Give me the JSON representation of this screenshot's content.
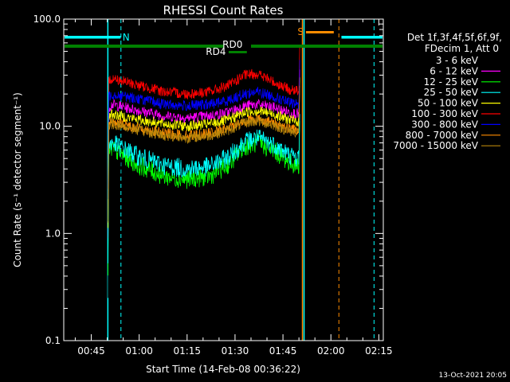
{
  "chart_data": {
    "type": "line",
    "title": "RHESSI Count Rates",
    "xlabel": "Start Time (14-Feb-08 00:36:22)",
    "ylabel": "Count Rate (s⁻¹ detector segment⁻¹)",
    "ylog": true,
    "ylim": [
      0.1,
      100.0
    ],
    "xlim_minutes": [
      36.4,
      136.4
    ],
    "x_ticks": [
      {
        "label": "00:45",
        "minute": 45
      },
      {
        "label": "01:00",
        "minute": 60
      },
      {
        "label": "01:15",
        "minute": 75
      },
      {
        "label": "01:30",
        "minute": 90
      },
      {
        "label": "01:45",
        "minute": 105
      },
      {
        "label": "02:00",
        "minute": 120
      },
      {
        "label": "02:15",
        "minute": 135
      }
    ],
    "y_ticks": [
      {
        "label": "0.1",
        "value": 0.1
      },
      {
        "label": "1.0",
        "value": 1.0
      },
      {
        "label": "10.0",
        "value": 10.0
      },
      {
        "label": "100.0",
        "value": 100.0
      }
    ],
    "legend_header": [
      "Det 1f,3f,4f,5f,6f,9f,",
      "FDecim 1, Att 0"
    ],
    "legend_position": "right",
    "series": [
      {
        "name": "3 - 6 keV",
        "color": "#000000",
        "x": [
          50.5,
          51.5,
          60,
          68,
          75,
          82,
          88,
          93,
          97,
          102,
          107,
          110
        ],
        "values": [
          4.8,
          5.2,
          3.4,
          2.5,
          2.3,
          2.5,
          3.6,
          6.0,
          6.8,
          5.5,
          3.8,
          3.5
        ]
      },
      {
        "name": "6 - 12 keV",
        "color": "#ff00ff",
        "x": [
          50.5,
          51.5,
          60,
          68,
          75,
          82,
          88,
          93,
          97,
          102,
          107,
          110
        ],
        "values": [
          15,
          16,
          14,
          12.5,
          12,
          12.5,
          13.5,
          15.5,
          16,
          15,
          13.5,
          13
        ]
      },
      {
        "name": "12 - 25 keV",
        "color": "#00ff00",
        "x": [
          50.5,
          51.5,
          60,
          68,
          75,
          82,
          88,
          93,
          97,
          102,
          107,
          110
        ],
        "values": [
          5.8,
          6.2,
          4.3,
          3.4,
          3.2,
          3.4,
          4.4,
          6.5,
          7.0,
          6.0,
          4.6,
          4.3
        ]
      },
      {
        "name": "25 - 50 keV",
        "color": "#00ffff",
        "x": [
          50.5,
          51.5,
          60,
          68,
          75,
          82,
          88,
          93,
          97,
          102,
          107,
          110
        ],
        "values": [
          6.6,
          7.0,
          5.2,
          4.3,
          4.0,
          4.2,
          5.2,
          7.2,
          7.8,
          6.8,
          5.4,
          5.0
        ]
      },
      {
        "name": "50 - 100 keV",
        "color": "#ffff00",
        "x": [
          50.5,
          51.5,
          60,
          68,
          75,
          82,
          88,
          93,
          97,
          102,
          107,
          110
        ],
        "values": [
          12.5,
          13,
          11.5,
          10.5,
          10,
          10.5,
          11.5,
          13.5,
          14,
          13,
          11.5,
          11
        ]
      },
      {
        "name": "100 - 300 keV",
        "color": "#ff0000",
        "x": [
          50.5,
          51.5,
          60,
          68,
          75,
          82,
          88,
          93,
          97,
          102,
          107,
          110
        ],
        "values": [
          26,
          28,
          24,
          21,
          20,
          21,
          24,
          30,
          31,
          26,
          22,
          21
        ]
      },
      {
        "name": "300 - 800 keV",
        "color": "#0000ff",
        "x": [
          50.5,
          51.5,
          60,
          68,
          75,
          82,
          88,
          93,
          97,
          102,
          107,
          110
        ],
        "values": [
          19,
          20,
          18,
          16,
          15.5,
          16,
          17.5,
          20,
          21,
          19,
          16.5,
          16
        ]
      },
      {
        "name": "800 - 7000 keV",
        "color": "#ff8c00",
        "x": [
          50.5,
          51.5,
          60,
          68,
          75,
          82,
          88,
          93,
          97,
          102,
          107,
          110
        ],
        "values": [
          10.5,
          11,
          9.6,
          8.6,
          8.2,
          8.6,
          9.6,
          11.3,
          11.8,
          10.8,
          9.5,
          9.2
        ]
      },
      {
        "name": "7000 - 15000 keV",
        "color": "#b8860b",
        "x": [
          50.5,
          51.5,
          60,
          68,
          75,
          82,
          88,
          93,
          97,
          102,
          107,
          110
        ],
        "values": [
          10,
          10.5,
          9.2,
          8.2,
          7.8,
          8.2,
          9.2,
          10.8,
          11.2,
          10.3,
          9.0,
          8.8
        ]
      }
    ],
    "annotations": [
      {
        "text": "N",
        "color": "#00ffff"
      },
      {
        "text": "S",
        "color": "#ff8c00"
      },
      {
        "text": "RD0",
        "color": "#ffffff"
      },
      {
        "text": "RD4",
        "color": "#ffffff"
      }
    ],
    "footer": "13-Oct-2021 20:05"
  },
  "colors": {
    "night": "#00ffff",
    "saa": "#ff8c00",
    "attenuator": "#008000",
    "axis": "#ffffff"
  }
}
